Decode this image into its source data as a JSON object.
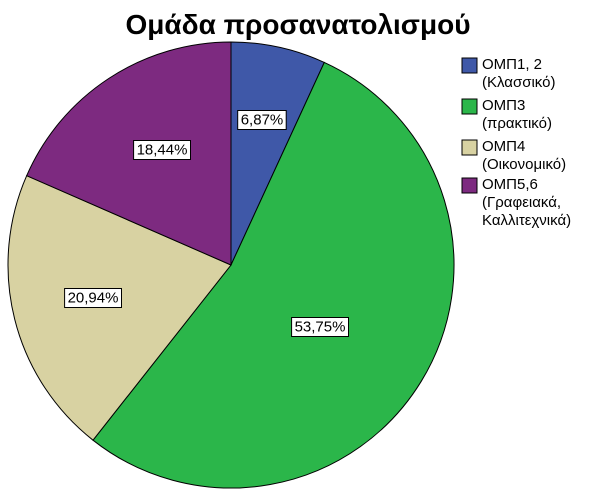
{
  "chart_data": {
    "type": "pie",
    "title": "Ομάδα προσανατολισμού",
    "start": "12 o'clock",
    "direction": "clockwise",
    "legend_placement": "right",
    "slices": [
      {
        "legend_lines": [
          "ΟΜΠ1, 2",
          "(Κλασσικό)"
        ],
        "value": 6.87,
        "label": "6,87%",
        "color": "#3f58a8"
      },
      {
        "legend_lines": [
          "ΟΜΠ3",
          "(πρακτικό)"
        ],
        "value": 53.75,
        "label": "53,75%",
        "color": "#2bb64a"
      },
      {
        "legend_lines": [
          "ΟΜΠ4",
          "(Οικονομικό)"
        ],
        "value": 20.94,
        "label": "20,94%",
        "color": "#d8d2a2"
      },
      {
        "legend_lines": [
          "ΟΜΠ5,6",
          "(Γραφειακά,",
          "Καλλιτεχνικά)"
        ],
        "value": 18.44,
        "label": "18,44%",
        "color": "#7d2a80"
      }
    ]
  }
}
